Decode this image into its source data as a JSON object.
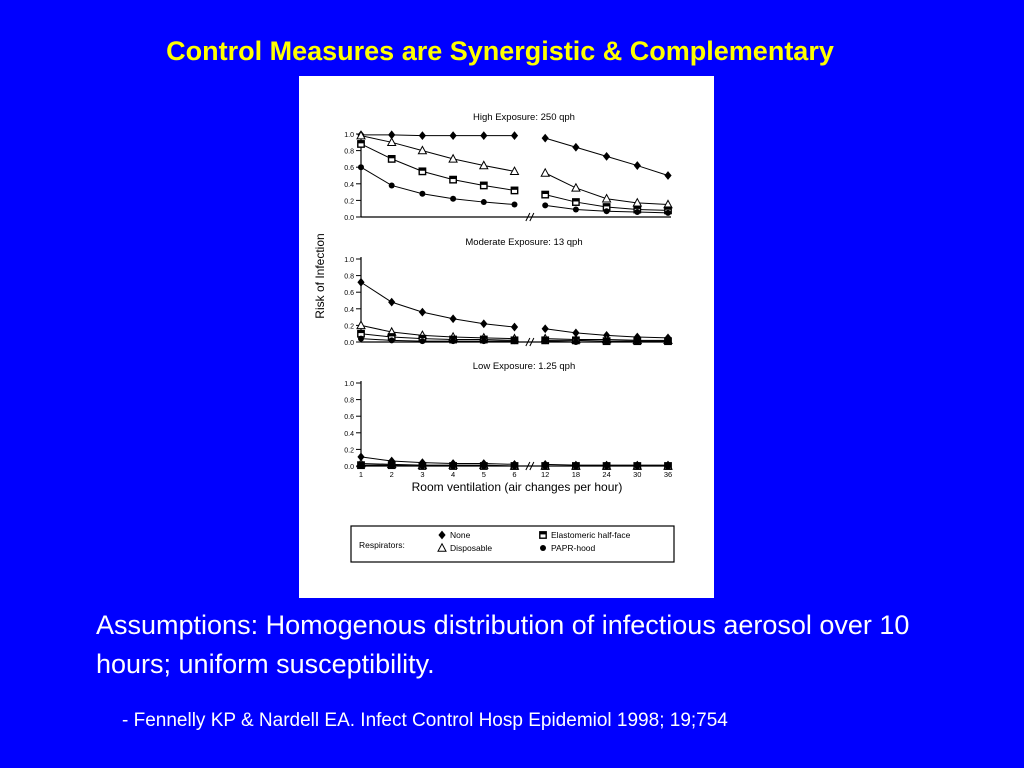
{
  "slide": {
    "title": "Control Measures are Synergistic & Complementary",
    "assumptions": "Assumptions:  Homogenous distribution of infectious aerosol over 10 hours; uniform susceptibility.",
    "citation": "- Fennelly KP & Nardell EA.  Infect Control Hosp Epidemiol 1998; 19;754"
  },
  "colors": {
    "background": "#0000ff",
    "title": "#ffff00",
    "body_text": "#ffffff",
    "figure_bg": "#ffffff"
  },
  "chart_data": [
    {
      "type": "line",
      "title": "High Exposure: 250 qph",
      "x": [
        "1",
        "2",
        "3",
        "4",
        "5",
        "6",
        "12",
        "18",
        "24",
        "30",
        "36"
      ],
      "ylim": [
        0,
        1.0
      ],
      "yticks": [
        "0.0",
        "0.2",
        "0.4",
        "0.6",
        "0.8",
        "1.0"
      ],
      "series": [
        {
          "name": "None",
          "marker": "diamond",
          "values": [
            0.99,
            0.99,
            0.98,
            0.98,
            0.98,
            0.98,
            0.95,
            0.84,
            0.73,
            0.62,
            0.5
          ]
        },
        {
          "name": "Disposable",
          "marker": "triangle",
          "values": [
            0.98,
            0.9,
            0.8,
            0.7,
            0.62,
            0.55,
            0.53,
            0.35,
            0.22,
            0.17,
            0.15
          ]
        },
        {
          "name": "Elastomeric half-face",
          "marker": "square",
          "values": [
            0.88,
            0.7,
            0.55,
            0.45,
            0.38,
            0.32,
            0.27,
            0.18,
            0.12,
            0.09,
            0.08
          ]
        },
        {
          "name": "PAPR-hood",
          "marker": "circle",
          "values": [
            0.6,
            0.38,
            0.28,
            0.22,
            0.18,
            0.15,
            0.14,
            0.09,
            0.07,
            0.06,
            0.05
          ]
        }
      ]
    },
    {
      "type": "line",
      "title": "Moderate Exposure: 13 qph",
      "x": [
        "1",
        "2",
        "3",
        "4",
        "5",
        "6",
        "12",
        "18",
        "24",
        "30",
        "36"
      ],
      "ylim": [
        0,
        1.0
      ],
      "yticks": [
        "0.0",
        "0.2",
        "0.4",
        "0.6",
        "0.8",
        "1.0"
      ],
      "series": [
        {
          "name": "None",
          "marker": "diamond",
          "values": [
            0.72,
            0.48,
            0.36,
            0.28,
            0.22,
            0.18,
            0.16,
            0.11,
            0.08,
            0.06,
            0.05
          ]
        },
        {
          "name": "Disposable",
          "marker": "triangle",
          "values": [
            0.2,
            0.12,
            0.08,
            0.06,
            0.05,
            0.04,
            0.04,
            0.03,
            0.03,
            0.02,
            0.02
          ]
        },
        {
          "name": "Elastomeric half-face",
          "marker": "square",
          "values": [
            0.1,
            0.06,
            0.04,
            0.03,
            0.03,
            0.02,
            0.02,
            0.02,
            0.01,
            0.01,
            0.01
          ]
        },
        {
          "name": "PAPR-hood",
          "marker": "circle",
          "values": [
            0.04,
            0.02,
            0.01,
            0.01,
            0.01,
            0.01,
            0.01,
            0.0,
            0.0,
            0.0,
            0.0
          ]
        }
      ]
    },
    {
      "type": "line",
      "title": "Low Exposure: 1.25 qph",
      "x": [
        "1",
        "2",
        "3",
        "4",
        "5",
        "6",
        "12",
        "18",
        "24",
        "30",
        "36"
      ],
      "xlabel": "Room ventilation (air changes per hour)",
      "ylim": [
        0,
        1.0
      ],
      "yticks": [
        "0.0",
        "0.2",
        "0.4",
        "0.6",
        "0.8",
        "1.0"
      ],
      "series": [
        {
          "name": "None",
          "marker": "diamond",
          "values": [
            0.11,
            0.06,
            0.04,
            0.03,
            0.03,
            0.02,
            0.02,
            0.01,
            0.01,
            0.01,
            0.01
          ]
        },
        {
          "name": "Disposable",
          "marker": "triangle",
          "values": [
            0.03,
            0.02,
            0.01,
            0.01,
            0.01,
            0.0,
            0.0,
            0.0,
            0.0,
            0.0,
            0.0
          ]
        },
        {
          "name": "Elastomeric half-face",
          "marker": "square",
          "values": [
            0.01,
            0.01,
            0.0,
            0.0,
            0.0,
            0.0,
            0.0,
            0.0,
            0.0,
            0.0,
            0.0
          ]
        },
        {
          "name": "PAPR-hood",
          "marker": "circle",
          "values": [
            0.0,
            0.0,
            0.0,
            0.0,
            0.0,
            0.0,
            0.0,
            0.0,
            0.0,
            0.0,
            0.0
          ]
        }
      ]
    }
  ],
  "shared_axis": {
    "ylabel": "Risk of Infection"
  },
  "legend": {
    "heading": "Respirators:",
    "placement": "bottom",
    "entries": [
      {
        "label": "None",
        "marker": "diamond"
      },
      {
        "label": "Disposable",
        "marker": "triangle"
      },
      {
        "label": "Elastomeric half-face",
        "marker": "square"
      },
      {
        "label": "PAPR-hood",
        "marker": "circle"
      }
    ]
  }
}
